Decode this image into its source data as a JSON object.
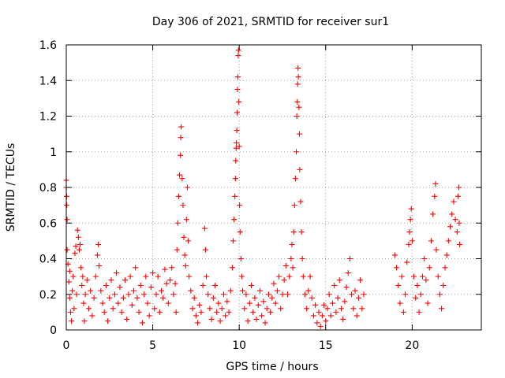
{
  "chart_data": {
    "type": "scatter",
    "title": "Day 306 of 2021, SRMTID for receiver sur1",
    "xlabel": "GPS time / hours",
    "ylabel": "SRMTID / TECUs",
    "xlim": [
      0,
      24
    ],
    "ylim": [
      0,
      1.6
    ],
    "x_ticks": [
      0,
      5,
      10,
      15,
      20
    ],
    "y_ticks": [
      0,
      0.2,
      0.4,
      0.6,
      0.8,
      1,
      1.2,
      1.4,
      1.6
    ],
    "x_tick_labels": [
      "0",
      "5",
      "10",
      "15",
      "20"
    ],
    "y_tick_labels": [
      "0",
      "0.2",
      "0.4",
      "0.6",
      "0.8",
      "1",
      "1.2",
      "1.4",
      "1.6"
    ],
    "grid": true,
    "marker": "plus",
    "series": [
      {
        "name": "sur1",
        "color": "#ff0000",
        "points": [
          [
            0.0,
            0.84
          ],
          [
            0.0,
            0.8
          ],
          [
            0.02,
            0.75
          ],
          [
            0.03,
            0.7
          ],
          [
            0.05,
            0.62
          ],
          [
            0.05,
            0.45
          ],
          [
            0.1,
            0.37
          ],
          [
            0.15,
            0.27
          ],
          [
            0.2,
            0.33
          ],
          [
            0.2,
            0.18
          ],
          [
            0.25,
            0.1
          ],
          [
            0.3,
            0.05
          ],
          [
            0.35,
            0.22
          ],
          [
            0.4,
            0.3
          ],
          [
            0.45,
            0.12
          ],
          [
            0.5,
            0.43
          ],
          [
            0.55,
            0.47
          ],
          [
            0.6,
            0.2
          ],
          [
            0.65,
            0.56
          ],
          [
            0.7,
            0.52
          ],
          [
            0.75,
            0.45
          ],
          [
            0.8,
            0.48
          ],
          [
            0.85,
            0.35
          ],
          [
            0.9,
            0.25
          ],
          [
            0.95,
            0.3
          ],
          [
            1.0,
            0.15
          ],
          [
            1.05,
            0.05
          ],
          [
            1.1,
            0.2
          ],
          [
            1.2,
            0.28
          ],
          [
            1.3,
            0.12
          ],
          [
            1.4,
            0.22
          ],
          [
            1.5,
            0.08
          ],
          [
            1.6,
            0.18
          ],
          [
            1.7,
            0.3
          ],
          [
            1.8,
            0.42
          ],
          [
            1.85,
            0.48
          ],
          [
            1.9,
            0.36
          ],
          [
            2.0,
            0.22
          ],
          [
            2.1,
            0.15
          ],
          [
            2.2,
            0.1
          ],
          [
            2.3,
            0.25
          ],
          [
            2.4,
            0.05
          ],
          [
            2.5,
            0.18
          ],
          [
            2.6,
            0.28
          ],
          [
            2.7,
            0.12
          ],
          [
            2.8,
            0.2
          ],
          [
            2.9,
            0.32
          ],
          [
            3.0,
            0.15
          ],
          [
            3.1,
            0.24
          ],
          [
            3.2,
            0.1
          ],
          [
            3.3,
            0.18
          ],
          [
            3.4,
            0.28
          ],
          [
            3.5,
            0.06
          ],
          [
            3.6,
            0.2
          ],
          [
            3.7,
            0.3
          ],
          [
            3.8,
            0.14
          ],
          [
            3.9,
            0.22
          ],
          [
            4.0,
            0.35
          ],
          [
            4.1,
            0.18
          ],
          [
            4.2,
            0.1
          ],
          [
            4.3,
            0.25
          ],
          [
            4.4,
            0.04
          ],
          [
            4.5,
            0.2
          ],
          [
            4.6,
            0.3
          ],
          [
            4.7,
            0.15
          ],
          [
            4.8,
            0.08
          ],
          [
            4.9,
            0.24
          ],
          [
            5.0,
            0.32
          ],
          [
            5.1,
            0.12
          ],
          [
            5.2,
            0.2
          ],
          [
            5.3,
            0.3
          ],
          [
            5.4,
            0.1
          ],
          [
            5.5,
            0.22
          ],
          [
            5.6,
            0.18
          ],
          [
            5.7,
            0.34
          ],
          [
            5.8,
            0.26
          ],
          [
            5.9,
            0.15
          ],
          [
            6.0,
            0.28
          ],
          [
            6.1,
            0.35
          ],
          [
            6.2,
            0.2
          ],
          [
            6.3,
            0.26
          ],
          [
            6.35,
            0.1
          ],
          [
            6.4,
            0.45
          ],
          [
            6.45,
            0.6
          ],
          [
            6.5,
            0.75
          ],
          [
            6.55,
            0.87
          ],
          [
            6.6,
            0.98
          ],
          [
            6.62,
            1.08
          ],
          [
            6.64,
            1.14
          ],
          [
            6.7,
            0.85
          ],
          [
            6.75,
            0.7
          ],
          [
            6.8,
            0.52
          ],
          [
            6.85,
            0.42
          ],
          [
            6.9,
            0.36
          ],
          [
            6.95,
            0.62
          ],
          [
            7.0,
            0.8
          ],
          [
            7.05,
            0.5
          ],
          [
            7.1,
            0.3
          ],
          [
            7.2,
            0.22
          ],
          [
            7.3,
            0.12
          ],
          [
            7.4,
            0.18
          ],
          [
            7.5,
            0.08
          ],
          [
            7.6,
            0.04
          ],
          [
            7.7,
            0.14
          ],
          [
            7.8,
            0.1
          ],
          [
            7.9,
            0.25
          ],
          [
            8.0,
            0.57
          ],
          [
            8.05,
            0.45
          ],
          [
            8.1,
            0.3
          ],
          [
            8.2,
            0.2
          ],
          [
            8.3,
            0.12
          ],
          [
            8.4,
            0.06
          ],
          [
            8.5,
            0.18
          ],
          [
            8.6,
            0.25
          ],
          [
            8.7,
            0.1
          ],
          [
            8.8,
            0.15
          ],
          [
            8.9,
            0.05
          ],
          [
            9.0,
            0.12
          ],
          [
            9.1,
            0.2
          ],
          [
            9.2,
            0.08
          ],
          [
            9.3,
            0.16
          ],
          [
            9.4,
            0.1
          ],
          [
            9.5,
            0.22
          ],
          [
            9.6,
            0.35
          ],
          [
            9.65,
            0.5
          ],
          [
            9.7,
            0.62
          ],
          [
            9.75,
            0.75
          ],
          [
            9.78,
            0.85
          ],
          [
            9.8,
            0.95
          ],
          [
            9.82,
            1.02
          ],
          [
            9.84,
            1.05
          ],
          [
            9.86,
            1.12
          ],
          [
            9.88,
            1.22
          ],
          [
            9.9,
            1.35
          ],
          [
            9.92,
            1.42
          ],
          [
            9.94,
            1.54
          ],
          [
            9.96,
            1.57
          ],
          [
            9.98,
            1.28
          ],
          [
            10.0,
            1.03
          ],
          [
            10.02,
            0.7
          ],
          [
            10.05,
            0.55
          ],
          [
            10.1,
            0.4
          ],
          [
            10.15,
            0.3
          ],
          [
            10.2,
            0.22
          ],
          [
            10.3,
            0.12
          ],
          [
            10.4,
            0.2
          ],
          [
            10.5,
            0.05
          ],
          [
            10.6,
            0.15
          ],
          [
            10.7,
            0.25
          ],
          [
            10.8,
            0.1
          ],
          [
            10.9,
            0.18
          ],
          [
            11.0,
            0.06
          ],
          [
            11.1,
            0.14
          ],
          [
            11.2,
            0.22
          ],
          [
            11.3,
            0.08
          ],
          [
            11.4,
            0.16
          ],
          [
            11.5,
            0.04
          ],
          [
            11.6,
            0.12
          ],
          [
            11.7,
            0.2
          ],
          [
            11.8,
            0.1
          ],
          [
            11.9,
            0.18
          ],
          [
            12.0,
            0.26
          ],
          [
            12.1,
            0.15
          ],
          [
            12.2,
            0.22
          ],
          [
            12.3,
            0.3
          ],
          [
            12.4,
            0.12
          ],
          [
            12.5,
            0.2
          ],
          [
            12.6,
            0.28
          ],
          [
            12.7,
            0.36
          ],
          [
            12.8,
            0.2
          ],
          [
            12.9,
            0.3
          ],
          [
            13.0,
            0.4
          ],
          [
            13.05,
            0.48
          ],
          [
            13.1,
            0.35
          ],
          [
            13.15,
            0.55
          ],
          [
            13.2,
            0.7
          ],
          [
            13.25,
            0.85
          ],
          [
            13.3,
            1.0
          ],
          [
            13.33,
            1.2
          ],
          [
            13.36,
            1.28
          ],
          [
            13.38,
            1.38
          ],
          [
            13.4,
            1.47
          ],
          [
            13.42,
            1.42
          ],
          [
            13.45,
            1.25
          ],
          [
            13.48,
            1.1
          ],
          [
            13.5,
            0.9
          ],
          [
            13.55,
            0.72
          ],
          [
            13.6,
            0.55
          ],
          [
            13.65,
            0.4
          ],
          [
            13.7,
            0.3
          ],
          [
            13.8,
            0.2
          ],
          [
            13.9,
            0.12
          ],
          [
            14.0,
            0.22
          ],
          [
            14.1,
            0.3
          ],
          [
            14.2,
            0.18
          ],
          [
            14.3,
            0.08
          ],
          [
            14.4,
            0.14
          ],
          [
            14.5,
            0.04
          ],
          [
            14.6,
            0.1
          ],
          [
            14.7,
            0.02
          ],
          [
            14.8,
            0.08
          ],
          [
            14.9,
            0.14
          ],
          [
            15.0,
            0.05
          ],
          [
            15.1,
            0.12
          ],
          [
            15.2,
            0.2
          ],
          [
            15.3,
            0.08
          ],
          [
            15.4,
            0.15
          ],
          [
            15.5,
            0.25
          ],
          [
            15.6,
            0.1
          ],
          [
            15.7,
            0.18
          ],
          [
            15.8,
            0.28
          ],
          [
            15.9,
            0.12
          ],
          [
            16.0,
            0.06
          ],
          [
            16.1,
            0.16
          ],
          [
            16.2,
            0.24
          ],
          [
            16.3,
            0.32
          ],
          [
            16.4,
            0.4
          ],
          [
            16.5,
            0.2
          ],
          [
            16.6,
            0.12
          ],
          [
            16.7,
            0.22
          ],
          [
            16.8,
            0.08
          ],
          [
            16.9,
            0.18
          ],
          [
            17.0,
            0.28
          ],
          [
            17.1,
            0.12
          ],
          [
            17.2,
            0.2
          ],
          [
            19.0,
            0.42
          ],
          [
            19.1,
            0.35
          ],
          [
            19.2,
            0.25
          ],
          [
            19.3,
            0.15
          ],
          [
            19.4,
            0.3
          ],
          [
            19.5,
            0.1
          ],
          [
            19.6,
            0.2
          ],
          [
            19.7,
            0.38
          ],
          [
            19.8,
            0.48
          ],
          [
            19.85,
            0.55
          ],
          [
            19.9,
            0.62
          ],
          [
            19.95,
            0.68
          ],
          [
            20.0,
            0.5
          ],
          [
            20.1,
            0.3
          ],
          [
            20.2,
            0.18
          ],
          [
            20.3,
            0.25
          ],
          [
            20.4,
            0.1
          ],
          [
            20.5,
            0.2
          ],
          [
            20.6,
            0.3
          ],
          [
            20.7,
            0.4
          ],
          [
            20.8,
            0.28
          ],
          [
            20.9,
            0.15
          ],
          [
            21.0,
            0.35
          ],
          [
            21.1,
            0.5
          ],
          [
            21.2,
            0.65
          ],
          [
            21.3,
            0.75
          ],
          [
            21.35,
            0.82
          ],
          [
            21.4,
            0.45
          ],
          [
            21.5,
            0.3
          ],
          [
            21.6,
            0.2
          ],
          [
            21.7,
            0.12
          ],
          [
            21.8,
            0.25
          ],
          [
            21.9,
            0.35
          ],
          [
            22.0,
            0.42
          ],
          [
            22.1,
            0.5
          ],
          [
            22.2,
            0.58
          ],
          [
            22.3,
            0.65
          ],
          [
            22.4,
            0.72
          ],
          [
            22.5,
            0.62
          ],
          [
            22.6,
            0.55
          ],
          [
            22.65,
            0.75
          ],
          [
            22.7,
            0.8
          ],
          [
            22.72,
            0.6
          ],
          [
            22.75,
            0.48
          ]
        ]
      }
    ]
  }
}
